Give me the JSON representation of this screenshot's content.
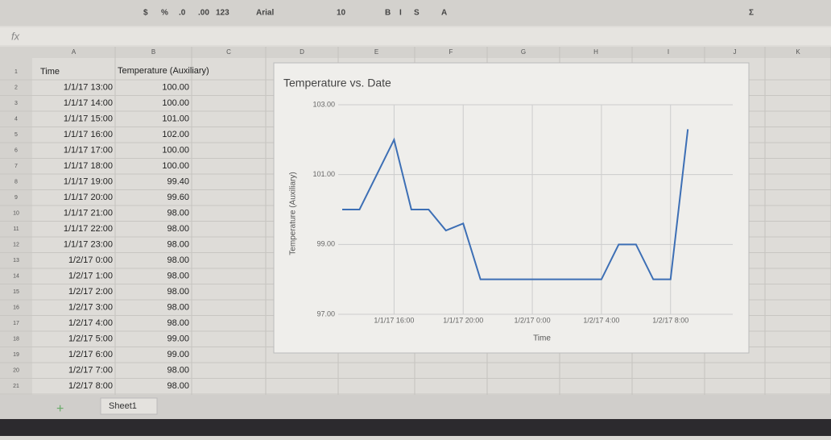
{
  "toolbar": {
    "items": [
      "$",
      "%",
      ".0",
      ".00",
      "123",
      "Arial",
      "10",
      "B",
      "I",
      "S",
      "A",
      "Σ"
    ]
  },
  "formula_bar": {
    "label": "fx"
  },
  "sheet_tab": "Sheet1",
  "columns": [
    "A",
    "B",
    "C",
    "D",
    "E",
    "F",
    "G",
    "H",
    "I",
    "J",
    "K"
  ],
  "row_numbers": [
    1,
    2,
    3,
    4,
    5,
    6,
    7,
    8,
    9,
    10,
    11,
    12,
    13,
    14,
    15,
    16,
    17,
    18,
    19,
    20,
    21
  ],
  "table": {
    "header": [
      "Time",
      "Temperature (Auxiliary)"
    ],
    "rows": [
      [
        "1/1/17 13:00",
        "100.00"
      ],
      [
        "1/1/17 14:00",
        "100.00"
      ],
      [
        "1/1/17 15:00",
        "101.00"
      ],
      [
        "1/1/17 16:00",
        "102.00"
      ],
      [
        "1/1/17 17:00",
        "100.00"
      ],
      [
        "1/1/17 18:00",
        "100.00"
      ],
      [
        "1/1/17 19:00",
        "99.40"
      ],
      [
        "1/1/17 20:00",
        "99.60"
      ],
      [
        "1/1/17 21:00",
        "98.00"
      ],
      [
        "1/1/17 22:00",
        "98.00"
      ],
      [
        "1/1/17 23:00",
        "98.00"
      ],
      [
        "1/2/17 0:00",
        "98.00"
      ],
      [
        "1/2/17 1:00",
        "98.00"
      ],
      [
        "1/2/17 2:00",
        "98.00"
      ],
      [
        "1/2/17 3:00",
        "98.00"
      ],
      [
        "1/2/17 4:00",
        "98.00"
      ],
      [
        "1/2/17 5:00",
        "99.00"
      ],
      [
        "1/2/17 6:00",
        "99.00"
      ],
      [
        "1/2/17 7:00",
        "98.00"
      ],
      [
        "1/2/17 8:00",
        "98.00"
      ]
    ]
  },
  "chart_data": {
    "type": "line",
    "title": "Temperature vs. Date",
    "x_label": "Time",
    "y_label": "Temperature (Auxiliary)",
    "categories": [
      null,
      null,
      null,
      null,
      null,
      null,
      null,
      null,
      null,
      null,
      null,
      null,
      null,
      null,
      null,
      null,
      null,
      null,
      null,
      null,
      null
    ],
    "values": [
      100,
      100,
      101,
      102,
      100,
      100,
      99.4,
      99.6,
      98,
      98,
      98,
      98,
      98,
      98,
      98,
      98,
      99,
      99,
      98,
      98,
      102.3
    ],
    "color": "#3d6fb5",
    "xlim": [
      0,
      22.6
    ],
    "xticks": [
      {
        "value": 3,
        "label": "1/1/17 16:00"
      },
      {
        "value": 7,
        "label": "1/1/17 20:00"
      },
      {
        "value": 11,
        "label": "1/2/17 0:00"
      },
      {
        "value": 15,
        "label": "1/2/17 4:00"
      },
      {
        "value": 19,
        "label": "1/2/17 8:00"
      }
    ],
    "ylim": [
      97,
      103
    ],
    "yticks": [
      {
        "value": 97,
        "label": "97.00"
      },
      {
        "value": 99,
        "label": "99.00"
      },
      {
        "value": 101,
        "label": "101.00"
      },
      {
        "value": 103,
        "label": "103.00"
      }
    ],
    "grid": true
  }
}
